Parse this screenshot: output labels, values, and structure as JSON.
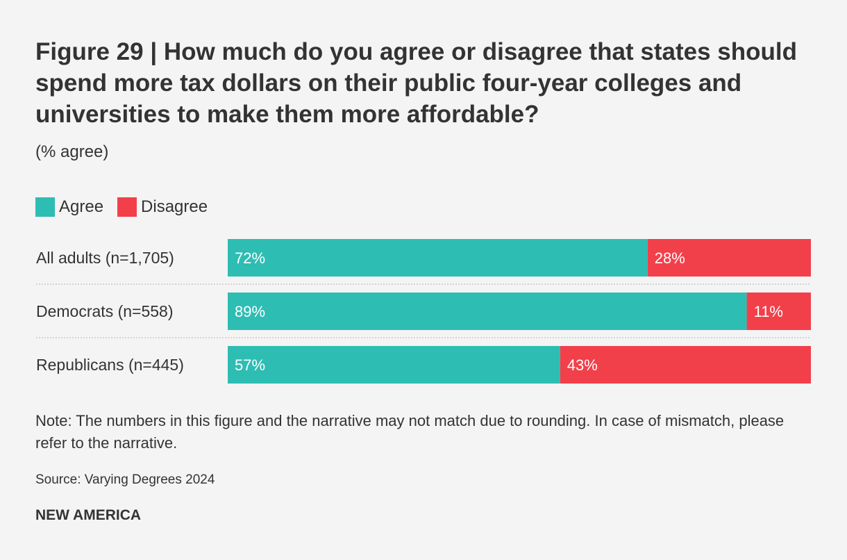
{
  "colors": {
    "agree": "#2ebdb3",
    "disagree": "#f2404b",
    "text": "#333333",
    "separator": "#c8c8c8"
  },
  "figure": {
    "title": "Figure 29 | How much do you agree or disagree that states should spend more tax dollars on their public four-year colleges and universities to make them more affordable?",
    "subtitle": "(% agree)",
    "note": "Note: The numbers in this figure and the narrative may not match due to rounding. In case of mismatch, please refer to the narrative.",
    "source": "Source: Varying Degrees 2024",
    "brand": "NEW AMERICA"
  },
  "legend": [
    {
      "label": "Agree",
      "color": "#2ebdb3"
    },
    {
      "label": "Disagree",
      "color": "#f2404b"
    }
  ],
  "chart_data": {
    "type": "bar",
    "stacked": true,
    "orientation": "horizontal",
    "title": "Figure 29 | How much do you agree or disagree that states should spend more tax dollars on their public four-year colleges and universities to make them more affordable?",
    "subtitle": "(% agree)",
    "categories": [
      "All adults (n=1,705)",
      "Democrats (n=558)",
      "Republicans (n=445)"
    ],
    "series": [
      {
        "name": "Agree",
        "values": [
          72,
          89,
          57
        ],
        "labels": [
          "72%",
          "89%",
          "57%"
        ],
        "color": "#2ebdb3"
      },
      {
        "name": "Disagree",
        "values": [
          28,
          11,
          43
        ],
        "labels": [
          "28%",
          "11%",
          "43%"
        ],
        "color": "#f2404b"
      }
    ],
    "xlim": [
      0,
      100
    ],
    "legend_position": "top-left",
    "grid": false
  }
}
